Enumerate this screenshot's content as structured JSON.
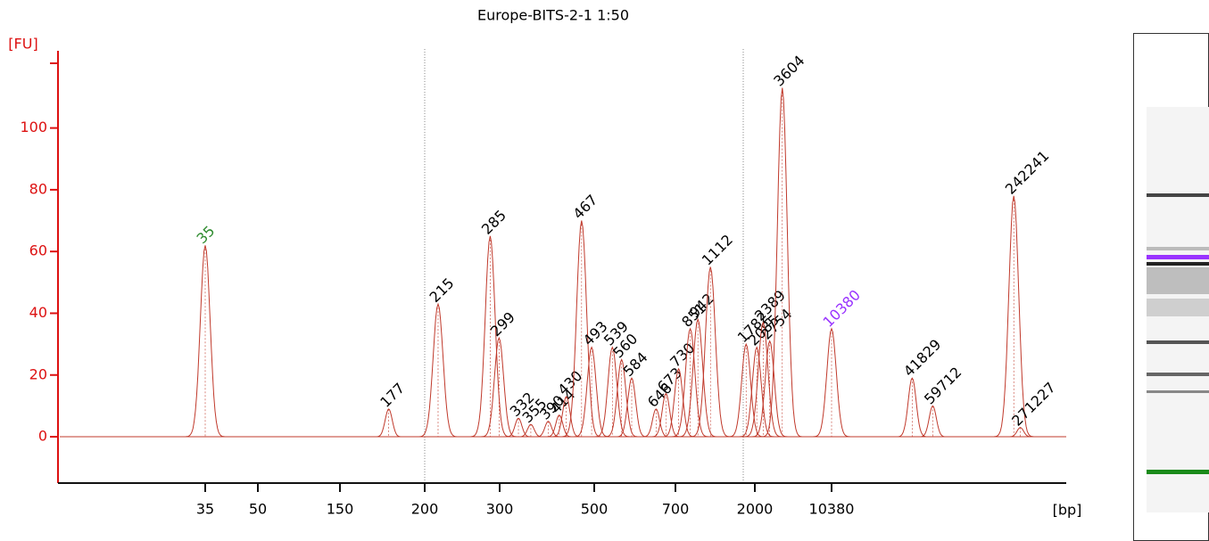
{
  "chart_data": {
    "type": "electropherogram",
    "title": "Europe-BITS-2-1 1:50",
    "ylabel": "[FU]",
    "xlabel": "[bp]",
    "ylim": [
      -15,
      125
    ],
    "yticks": [
      0,
      20,
      40,
      60,
      80,
      100
    ],
    "xlim": [
      20,
      600000
    ],
    "xticks": [
      35,
      50,
      150,
      200,
      300,
      500,
      700,
      2000,
      10380
    ],
    "log_scale_x": true,
    "axis_color": "#dd1111",
    "color": "#c0392b",
    "x": [
      35,
      177,
      215,
      285,
      299,
      332,
      355,
      390,
      414,
      430,
      467,
      493,
      539,
      560,
      584,
      646,
      673,
      730,
      851,
      942,
      1112,
      1782,
      2085,
      2389,
      2754,
      3604,
      10380,
      41829,
      59712,
      242241,
      271227
    ],
    "values": [
      62,
      9,
      43,
      65,
      32,
      6,
      4,
      5,
      7,
      13,
      70,
      29,
      29,
      25,
      19,
      9,
      14,
      22,
      35,
      38,
      55,
      30,
      29,
      37,
      31,
      113,
      35,
      19,
      10,
      78,
      3
    ],
    "label_colors": [
      "#2e8b2e",
      "#000000",
      "#000000",
      "#000000",
      "#000000",
      "#000000",
      "#000000",
      "#000000",
      "#000000",
      "#000000",
      "#000000",
      "#000000",
      "#000000",
      "#000000",
      "#000000",
      "#000000",
      "#000000",
      "#000000",
      "#000000",
      "#000000",
      "#000000",
      "#000000",
      "#000000",
      "#000000",
      "#000000",
      "#000000",
      "#9933ff",
      "#000000",
      "#000000",
      "#000000",
      "#000000"
    ]
  }
}
